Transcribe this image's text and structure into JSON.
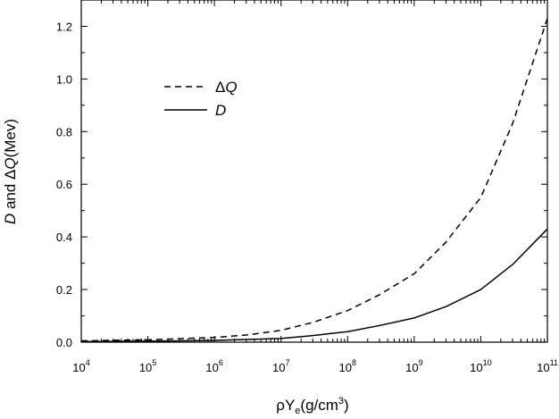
{
  "chart_data": {
    "type": "line",
    "x_scale": "log",
    "y_scale": "linear",
    "xlim": [
      10000.0,
      100000000000.0
    ],
    "ylim": [
      0,
      1.3
    ],
    "x": [
      10000.0,
      30000.0,
      100000.0,
      300000.0,
      1000000.0,
      3000000.0,
      10000000.0,
      30000000.0,
      100000000.0,
      300000000.0,
      1000000000.0,
      3000000000.0,
      10000000000.0,
      30000000000.0,
      100000000000.0
    ],
    "series": [
      {
        "name": "ΔQ",
        "style": "dashed",
        "color": "#000000",
        "values": [
          0.005,
          0.007,
          0.009,
          0.013,
          0.018,
          0.027,
          0.045,
          0.075,
          0.12,
          0.18,
          0.26,
          0.38,
          0.55,
          0.83,
          1.23
        ]
      },
      {
        "name": "D",
        "style": "solid",
        "color": "#000000",
        "values": [
          0.002,
          0.003,
          0.004,
          0.005,
          0.007,
          0.01,
          0.014,
          0.025,
          0.04,
          0.063,
          0.092,
          0.135,
          0.2,
          0.295,
          0.43
        ]
      }
    ],
    "yticks": [
      "0.0",
      "0.2",
      "0.4",
      "0.6",
      "0.8",
      "1.0",
      "1.2"
    ],
    "xtick_base": "10",
    "xtick_exponents": [
      "4",
      "5",
      "6",
      "7",
      "8",
      "9",
      "10",
      "11"
    ],
    "ylabel": {
      "d": "D",
      "mid": " and Δ",
      "q": "Q",
      "rest": "(Mev)"
    },
    "xlabel": {
      "rho": "ρ",
      "y": "Y",
      "sub": "e",
      "unit": "(g/cm",
      "sup": "3",
      "close": ")"
    },
    "legend": [
      {
        "prefix": "Δ",
        "label": "Q",
        "style": "dashed"
      },
      {
        "prefix": "",
        "label": "D",
        "style": "solid"
      }
    ],
    "legend_position": "upper-left",
    "grid": false
  }
}
